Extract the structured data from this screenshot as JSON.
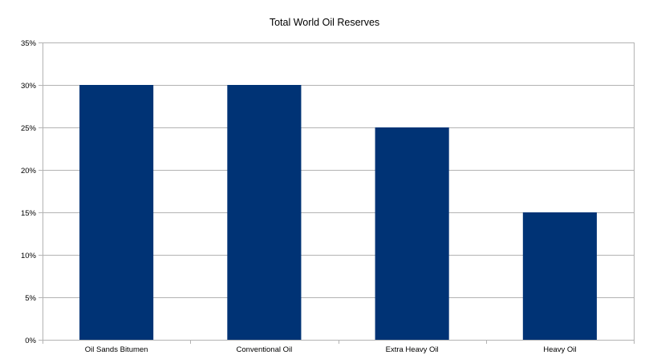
{
  "chart_data": {
    "type": "bar",
    "title": "Total World Oil Reserves",
    "categories": [
      "Oil Sands Bitumen",
      "Conventional Oil",
      "Extra Heavy Oil",
      "Heavy Oil"
    ],
    "values": [
      0.3,
      0.3,
      0.25,
      0.15
    ],
    "ylim": [
      0,
      0.35
    ],
    "yticks": [
      "0%",
      "5%",
      "10%",
      "15%",
      "20%",
      "25%",
      "30%",
      "35%"
    ],
    "ytick_values": [
      0,
      0.05,
      0.1,
      0.15,
      0.2,
      0.25,
      0.3,
      0.35
    ],
    "xlabel": "",
    "ylabel": "",
    "grid": true,
    "legend": "none",
    "bar_color": "#003375"
  }
}
